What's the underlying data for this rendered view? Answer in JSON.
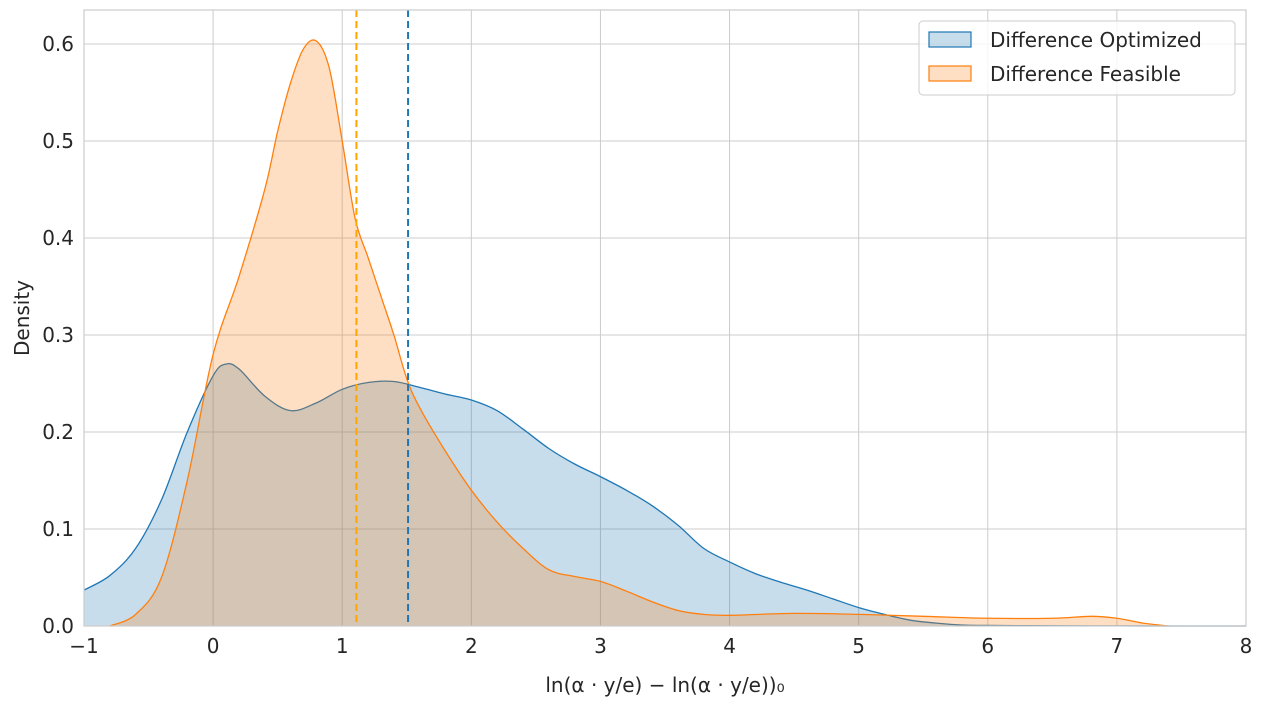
{
  "chart_data": {
    "type": "area",
    "title": "",
    "xlabel": "ln(α · y/e) − ln(α · y/e))₀",
    "ylabel": "Density",
    "xlim": [
      -1,
      8
    ],
    "ylim": [
      0,
      0.635
    ],
    "grid": true,
    "legend_position": "top-right",
    "x_ticks": [
      -1,
      0,
      1,
      2,
      3,
      4,
      5,
      6,
      7,
      8
    ],
    "x_tick_labels": [
      "−1",
      "0",
      "1",
      "2",
      "3",
      "4",
      "5",
      "6",
      "7",
      "8"
    ],
    "y_ticks": [
      0,
      0.1,
      0.2,
      0.3,
      0.4,
      0.5,
      0.6
    ],
    "y_tick_labels": [
      "0.0",
      "0.1",
      "0.2",
      "0.3",
      "0.4",
      "0.5",
      "0.6"
    ],
    "series": [
      {
        "name": "Difference Optimized",
        "color": "#1f77b4",
        "fill": "#1f77b4",
        "fill_opacity": 0.25,
        "mean_line_x": 1.51,
        "mean_line_color": "#1f77b4",
        "x": [
          -1.0,
          -0.8,
          -0.6,
          -0.4,
          -0.2,
          0.0,
          0.1,
          0.2,
          0.4,
          0.6,
          0.8,
          1.0,
          1.2,
          1.4,
          1.6,
          1.8,
          2.0,
          2.2,
          2.4,
          2.6,
          2.8,
          3.0,
          3.2,
          3.4,
          3.6,
          3.8,
          4.0,
          4.2,
          4.4,
          4.6,
          4.8,
          5.0,
          5.2,
          5.4,
          5.6,
          5.8,
          6.0,
          6.5,
          7.0,
          7.5,
          8.0
        ],
        "y": [
          0.037,
          0.052,
          0.08,
          0.13,
          0.2,
          0.258,
          0.27,
          0.265,
          0.237,
          0.222,
          0.23,
          0.244,
          0.251,
          0.252,
          0.246,
          0.239,
          0.233,
          0.222,
          0.203,
          0.183,
          0.167,
          0.154,
          0.14,
          0.124,
          0.104,
          0.08,
          0.066,
          0.054,
          0.045,
          0.037,
          0.028,
          0.019,
          0.012,
          0.006,
          0.003,
          0.001,
          0.0006,
          0.0002,
          0.0001,
          0.0,
          0.0
        ]
      },
      {
        "name": "Difference Feasible",
        "color": "#ff7f0e",
        "fill": "#ff7f0e",
        "fill_opacity": 0.25,
        "mean_line_x": 1.11,
        "mean_line_color": "#ffa500",
        "x": [
          -0.8,
          -0.6,
          -0.4,
          -0.2,
          0.0,
          0.2,
          0.4,
          0.5,
          0.6,
          0.7,
          0.8,
          0.9,
          1.0,
          1.1,
          1.2,
          1.3,
          1.4,
          1.5,
          1.6,
          1.8,
          2.0,
          2.2,
          2.4,
          2.6,
          2.8,
          3.0,
          3.2,
          3.4,
          3.6,
          3.8,
          4.0,
          4.5,
          5.0,
          5.5,
          6.0,
          6.5,
          6.8,
          7.0,
          7.2,
          7.4
        ],
        "y": [
          0.0,
          0.012,
          0.05,
          0.15,
          0.28,
          0.36,
          0.45,
          0.51,
          0.56,
          0.595,
          0.603,
          0.575,
          0.5,
          0.42,
          0.38,
          0.34,
          0.3,
          0.255,
          0.225,
          0.18,
          0.14,
          0.107,
          0.08,
          0.058,
          0.051,
          0.046,
          0.036,
          0.025,
          0.016,
          0.012,
          0.011,
          0.013,
          0.012,
          0.01,
          0.008,
          0.008,
          0.01,
          0.008,
          0.003,
          0.0
        ]
      }
    ]
  }
}
